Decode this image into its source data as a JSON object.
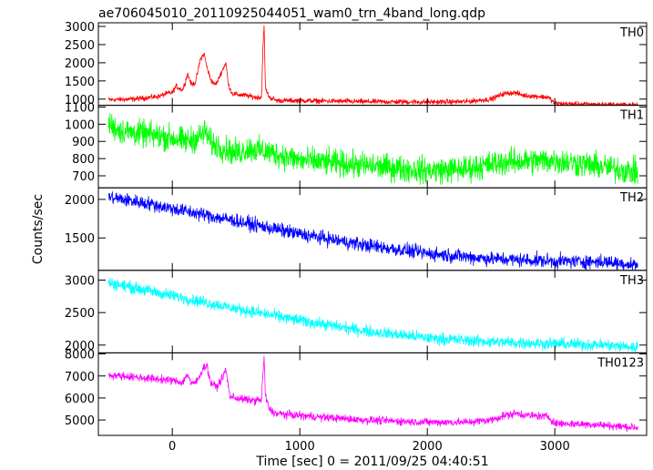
{
  "chart_data": {
    "type": "line",
    "title": "ae706045010_20110925044051_wam0_trn_4band_long.qdp",
    "xlabel": "Time [sec] 0 = 2011/09/25 04:40:51",
    "ylabel": "Counts/sec",
    "xlim": [
      -580,
      3720
    ],
    "xticks": [
      0,
      1000,
      2000,
      3000
    ],
    "grid": false,
    "panels": [
      {
        "name": "TH0",
        "color": "#ff0000",
        "ylim": [
          830,
          3100
        ],
        "yticks": [
          1000,
          1500,
          2000,
          2500,
          3000
        ],
        "x": [
          -500,
          -300,
          -100,
          -50,
          0,
          30,
          80,
          100,
          120,
          150,
          180,
          200,
          220,
          250,
          270,
          300,
          330,
          350,
          380,
          420,
          440,
          470,
          520,
          580,
          650,
          700,
          710,
          720,
          730,
          760,
          820,
          1000,
          1500,
          2000,
          2300,
          2500,
          2600,
          2680,
          2760,
          2850,
          2950,
          3000,
          3200,
          3400,
          3650
        ],
        "y": [
          980,
          1000,
          1080,
          1150,
          1180,
          1350,
          1250,
          1450,
          1700,
          1400,
          1450,
          1750,
          2100,
          2250,
          1900,
          1550,
          1400,
          1450,
          1700,
          2000,
          1400,
          1150,
          1120,
          1100,
          1050,
          1050,
          2400,
          3000,
          1300,
          1050,
          960,
          960,
          930,
          920,
          930,
          1000,
          1150,
          1180,
          1100,
          1080,
          1050,
          880,
          860,
          850,
          840
        ],
        "noise": 35
      },
      {
        "name": "TH1",
        "color": "#00ff00",
        "ylim": [
          630,
          1110
        ],
        "yticks": [
          700,
          800,
          900,
          1000,
          1100
        ],
        "x": [
          -500,
          -400,
          -300,
          -100,
          0,
          100,
          200,
          260,
          300,
          400,
          500,
          600,
          800,
          1000,
          1500,
          2000,
          2300,
          2600,
          3000,
          3300,
          3650
        ],
        "y": [
          1000,
          960,
          950,
          930,
          920,
          900,
          920,
          960,
          890,
          860,
          830,
          860,
          830,
          790,
          760,
          730,
          740,
          780,
          790,
          760,
          720
        ],
        "noise": 38
      },
      {
        "name": "TH2",
        "color": "#0000ff",
        "ylim": [
          1080,
          2150
        ],
        "yticks": [
          1500,
          2000
        ],
        "x": [
          -500,
          -200,
          0,
          500,
          1000,
          1500,
          2000,
          2500,
          3000,
          3400,
          3650
        ],
        "y": [
          2030,
          1950,
          1880,
          1720,
          1550,
          1410,
          1300,
          1230,
          1200,
          1190,
          1150
        ],
        "noise": 45
      },
      {
        "name": "TH3",
        "color": "#00ffff",
        "ylim": [
          1880,
          3150
        ],
        "yticks": [
          2000,
          2500,
          3000
        ],
        "x": [
          -500,
          -300,
          0,
          500,
          1000,
          1500,
          2000,
          2500,
          3000,
          3400,
          3650
        ],
        "y": [
          2960,
          2880,
          2760,
          2560,
          2380,
          2220,
          2110,
          2050,
          2020,
          2000,
          1960
        ],
        "noise": 45
      },
      {
        "name": "TH0123",
        "color": "#ff00ff",
        "ylim": [
          4300,
          8050
        ],
        "yticks": [
          5000,
          6000,
          7000,
          8000
        ],
        "x": [
          -500,
          -300,
          -100,
          0,
          80,
          120,
          150,
          200,
          240,
          270,
          300,
          350,
          400,
          420,
          450,
          500,
          600,
          700,
          710,
          720,
          730,
          760,
          800,
          1000,
          1500,
          2000,
          2300,
          2500,
          2600,
          2700,
          2800,
          2950,
          3000,
          3300,
          3650
        ],
        "y": [
          7050,
          6950,
          6850,
          6800,
          6700,
          7100,
          6600,
          6800,
          7350,
          7500,
          6700,
          6500,
          7000,
          7300,
          6100,
          6000,
          5900,
          5900,
          7000,
          7900,
          6100,
          5500,
          5300,
          5200,
          5000,
          4900,
          4900,
          5000,
          5200,
          5300,
          5200,
          5150,
          4850,
          4800,
          4650
        ],
        "noise": 90
      }
    ]
  }
}
